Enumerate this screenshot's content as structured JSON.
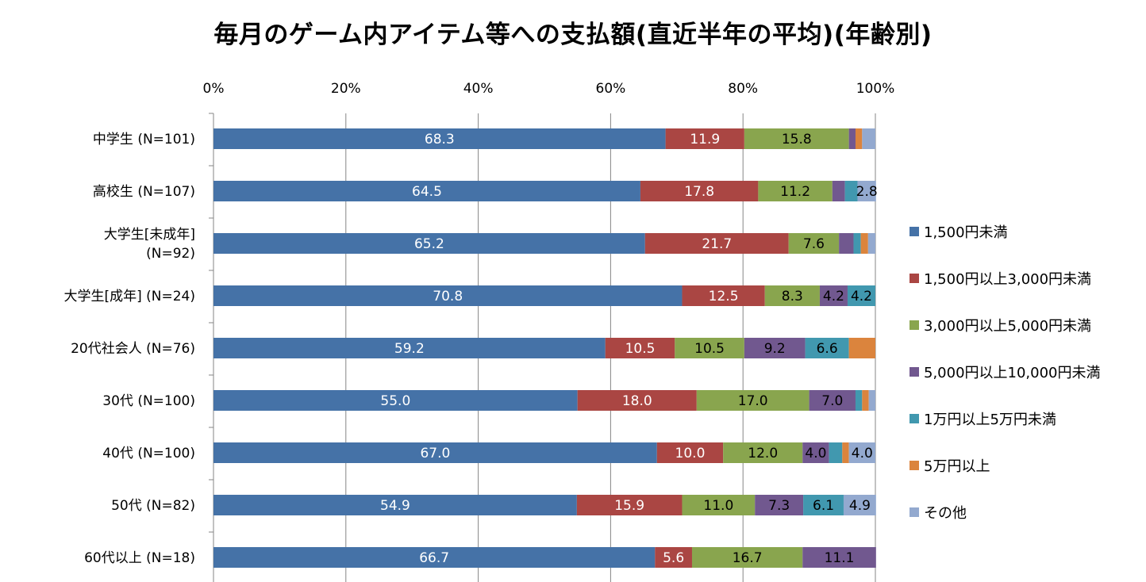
{
  "chart_data": {
    "type": "bar",
    "orientation": "horizontal",
    "stacked": "percent",
    "title": "毎月のゲーム内アイテム等への支払額(直近半年の平均)(年齢別)",
    "x_ticks": [
      "0%",
      "20%",
      "40%",
      "60%",
      "80%",
      "100%"
    ],
    "xlim": [
      0,
      100
    ],
    "grid": true,
    "legend_position": "right",
    "categories": [
      [
        "中学生 (N=101)"
      ],
      [
        "高校生 (N=107)"
      ],
      [
        "大学生[未成年]",
        "(N=92)"
      ],
      [
        "大学生[成年] (N=24)"
      ],
      [
        "20代社会人 (N=76)"
      ],
      [
        "30代 (N=100)"
      ],
      [
        "40代 (N=100)"
      ],
      [
        "50代 (N=82)"
      ],
      [
        "60代以上 (N=18)"
      ]
    ],
    "series": [
      {
        "name": "1,500円未満",
        "color": "#4572A7",
        "values": [
          68.3,
          64.5,
          65.2,
          70.8,
          59.2,
          55.0,
          67.0,
          54.9,
          66.7
        ],
        "labels": [
          "68.3",
          "64.5",
          "65.2",
          "70.8",
          "59.2",
          "55.0",
          "67.0",
          "54.9",
          "66.7"
        ]
      },
      {
        "name": "1,500円以上3,000円未満",
        "color": "#AA4643",
        "values": [
          11.9,
          17.8,
          21.7,
          12.5,
          10.5,
          18.0,
          10.0,
          15.9,
          5.6
        ],
        "labels": [
          "11.9",
          "17.8",
          "21.7",
          "12.5",
          "10.5",
          "18.0",
          "10.0",
          "15.9",
          "5.6"
        ]
      },
      {
        "name": "3,000円以上5,000円未満",
        "color": "#89A54E",
        "values": [
          15.8,
          11.2,
          7.6,
          8.3,
          10.5,
          17.0,
          12.0,
          11.0,
          16.7
        ],
        "labels": [
          "15.8",
          "11.2",
          "7.6",
          "8.3",
          "10.5",
          "17.0",
          "12.0",
          "11.0",
          "16.7"
        ]
      },
      {
        "name": "5,000円以上10,000円未満",
        "color": "#71588F",
        "values": [
          1.0,
          1.9,
          2.2,
          4.2,
          9.2,
          7.0,
          4.0,
          7.3,
          11.1
        ],
        "labels": [
          "",
          "",
          "",
          "4.2",
          "9.2",
          "7.0",
          "4.0",
          "7.3",
          "11.1"
        ]
      },
      {
        "name": "1万円以上5万円未満",
        "color": "#4198AF",
        "values": [
          0.0,
          1.9,
          1.1,
          4.2,
          6.6,
          1.0,
          2.0,
          6.1,
          0.0
        ],
        "labels": [
          "",
          "",
          "",
          "4.2",
          "6.6",
          "",
          "",
          "6.1",
          ""
        ]
      },
      {
        "name": "5万円以上",
        "color": "#DB843D",
        "values": [
          1.0,
          0.0,
          1.1,
          0.0,
          4.0,
          1.0,
          1.0,
          0.0,
          0.0
        ],
        "labels": [
          "",
          "",
          "",
          "",
          "",
          "",
          "",
          "",
          ""
        ]
      },
      {
        "name": "その他",
        "color": "#93A9CF",
        "values": [
          2.0,
          2.8,
          1.1,
          0.0,
          0.0,
          1.0,
          4.0,
          4.9,
          0.0
        ],
        "labels": [
          "",
          "2.8",
          "",
          "",
          "",
          "",
          "4.0",
          "4.9",
          ""
        ]
      }
    ]
  }
}
